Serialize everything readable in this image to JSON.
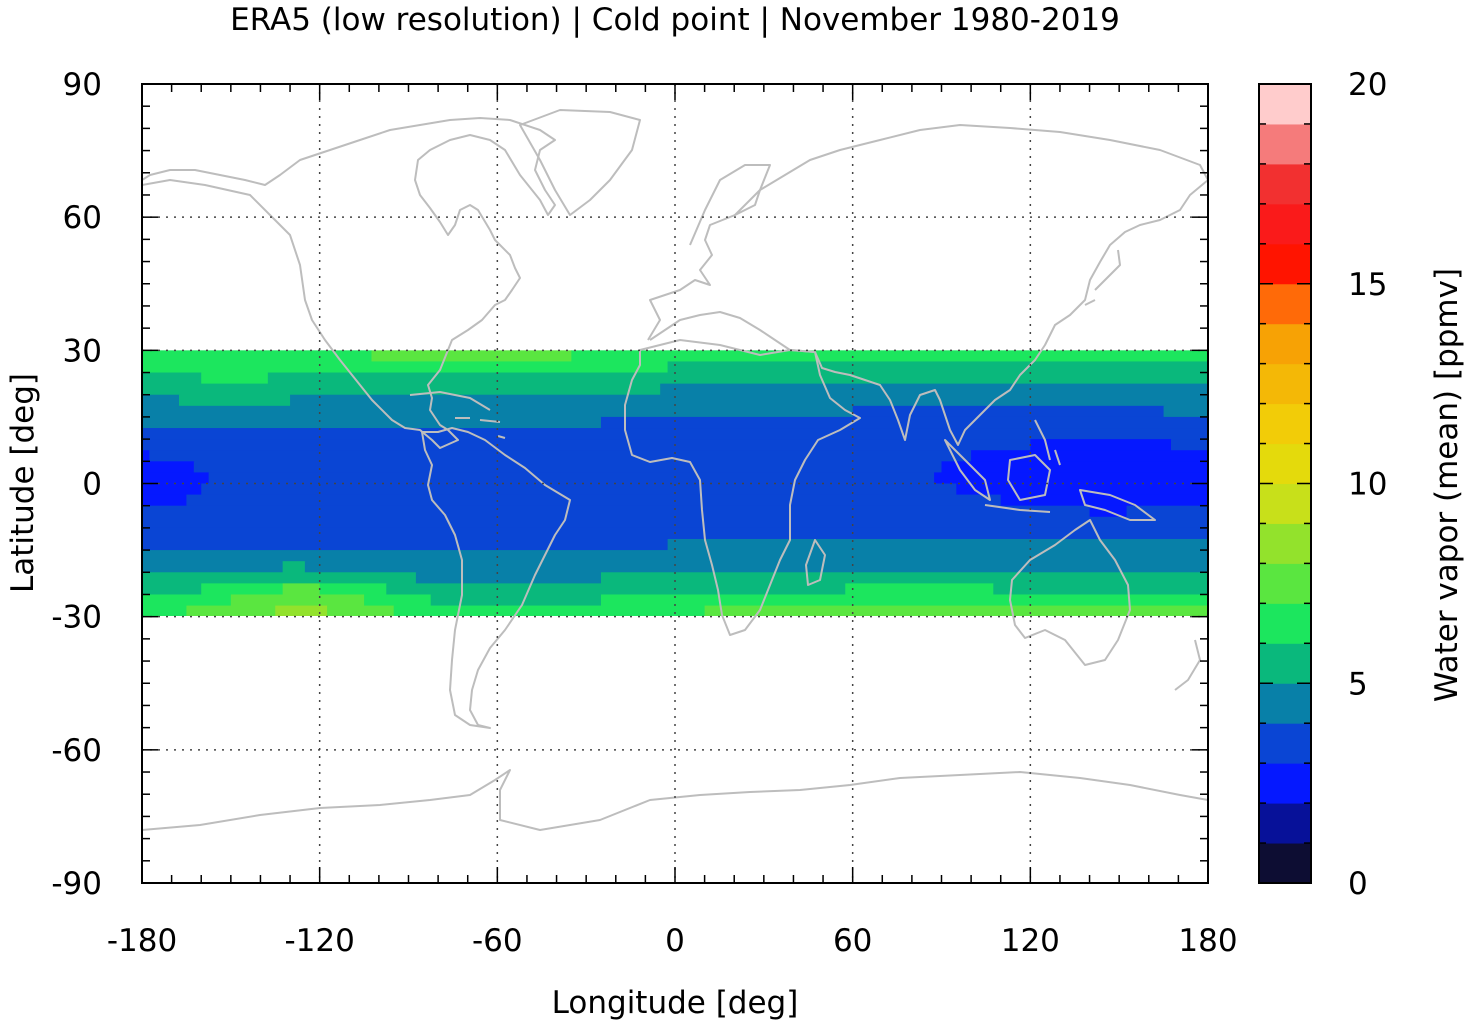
{
  "chart_data": {
    "type": "heatmap",
    "title": "ERA5 (low resolution) | Cold point | November 1980-2019",
    "xlabel": "Longitude [deg]",
    "ylabel": "Latitude [deg]",
    "xlim": [
      -180,
      180
    ],
    "ylim": [
      -90,
      90
    ],
    "x_ticks": [
      "-180",
      "-120",
      "-60",
      "0",
      "60",
      "120",
      "180"
    ],
    "y_ticks": [
      "90",
      "60",
      "30",
      "0",
      "-30",
      "-60",
      "-90"
    ],
    "data_lat_range": [
      -30,
      30
    ],
    "grid": "dotted",
    "background_map": "world coastlines (gray)",
    "colorbar": {
      "label": "Water vapor (mean) [ppmv]",
      "range": [
        0,
        20
      ],
      "step": 1,
      "ticks": [
        "0",
        "5",
        "10",
        "15",
        "20"
      ],
      "colors": [
        "#0d0d33",
        "#071199",
        "#0518ff",
        "#0a45d4",
        "#0880a8",
        "#0ab87c",
        "#1ce65e",
        "#5ae640",
        "#93e22c",
        "#c8e01a",
        "#e4da0c",
        "#f2cc08",
        "#f4b806",
        "#f7a205",
        "#ff6a08",
        "#ff1400",
        "#fa1a1a",
        "#f23030",
        "#f57b7b",
        "#ffcccc"
      ]
    },
    "regions_ppmv": [
      {
        "area": "tropical western Pacific / Maritime Continent",
        "value_range": [
          2,
          3
        ]
      },
      {
        "area": "equatorial band",
        "value_range": [
          3,
          4
        ]
      },
      {
        "area": "tropical band margins",
        "value_range": [
          4,
          5
        ]
      },
      {
        "area": "subtropics near 30N / 30S",
        "value_range": [
          5,
          6
        ]
      },
      {
        "area": "southeast Pacific near 25S",
        "value_range": [
          6,
          7
        ]
      }
    ]
  }
}
